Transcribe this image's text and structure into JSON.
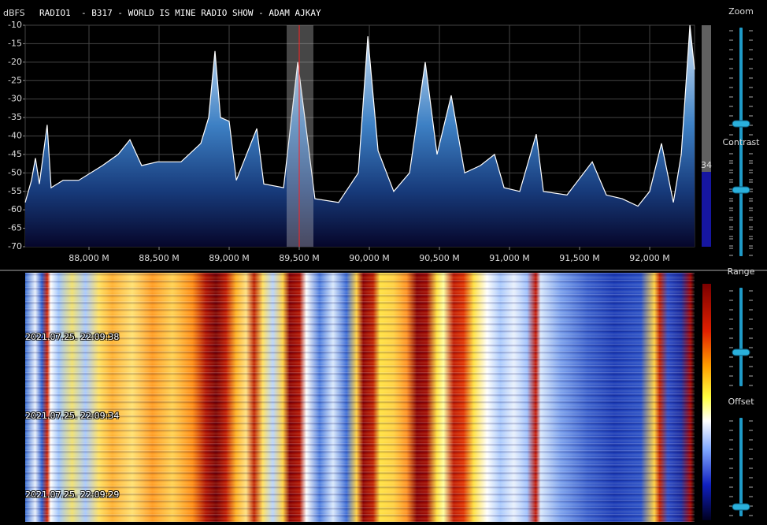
{
  "header": {
    "unit": "dBFS",
    "station": "RADIO1  - B317 - WORLD IS MINE RADIO SHOW - ADAM AJKAY"
  },
  "spectrum": {
    "type": "line",
    "x": [
      87545,
      87590,
      87618,
      87646,
      87702,
      87730,
      87815,
      87927,
      88096,
      88208,
      88292,
      88376,
      88489,
      88657,
      88798,
      88854,
      88899,
      88938,
      89000,
      89051,
      89197,
      89247,
      89388,
      89489,
      89556,
      89612,
      89781,
      89921,
      89989,
      90062,
      90174,
      90287,
      90399,
      90483,
      90584,
      90680,
      90792,
      90893,
      90961,
      91073,
      91191,
      91242,
      91410,
      91590,
      91691,
      91803,
      91916,
      92000,
      92084,
      92169,
      92225,
      92287,
      92320
    ],
    "values": [
      -58,
      -52,
      -46,
      -53,
      -37,
      -54,
      -52,
      -52,
      -48,
      -45,
      -41,
      -48,
      -47,
      -47,
      -42,
      -35,
      -17,
      -35,
      -36,
      -52,
      -38,
      -53,
      -54,
      -20,
      -40,
      -57,
      -58,
      -50,
      -13,
      -44,
      -55,
      -50,
      -20,
      -45,
      -29,
      -50,
      -48,
      -45,
      -54,
      -55,
      -39.5,
      -55,
      -56,
      -47,
      -56,
      -57,
      -59,
      -55,
      -42,
      -58,
      -45,
      -10,
      -22
    ],
    "color": "#ffffff",
    "xlim": [
      87545,
      92320
    ],
    "ylim": [
      -70,
      -10
    ],
    "xticks": [
      {
        "value": 88000,
        "label": "88,000 M"
      },
      {
        "value": 88500,
        "label": "88,500 M"
      },
      {
        "value": 89000,
        "label": "89,000 M"
      },
      {
        "value": 89500,
        "label": "89,500 M"
      },
      {
        "value": 90000,
        "label": "90,000 M"
      },
      {
        "value": 90500,
        "label": "90,500 M"
      },
      {
        "value": 91000,
        "label": "91,000 M"
      },
      {
        "value": 91500,
        "label": "91,500 M"
      },
      {
        "value": 92000,
        "label": "92,000 M"
      }
    ],
    "yticks": [
      -10,
      -15,
      -20,
      -25,
      -30,
      -35,
      -40,
      -45,
      -50,
      -55,
      -60,
      -65,
      -70
    ],
    "grid": true
  },
  "level": 34,
  "waterfall": {
    "timestamps": [
      "2021.07.25. 22:09:38",
      "2021.07.25. 22:09:34",
      "2021.07.25. 22:09:29"
    ]
  },
  "controls": [
    "Zoom",
    "Contrast",
    "Range",
    "Offset"
  ]
}
